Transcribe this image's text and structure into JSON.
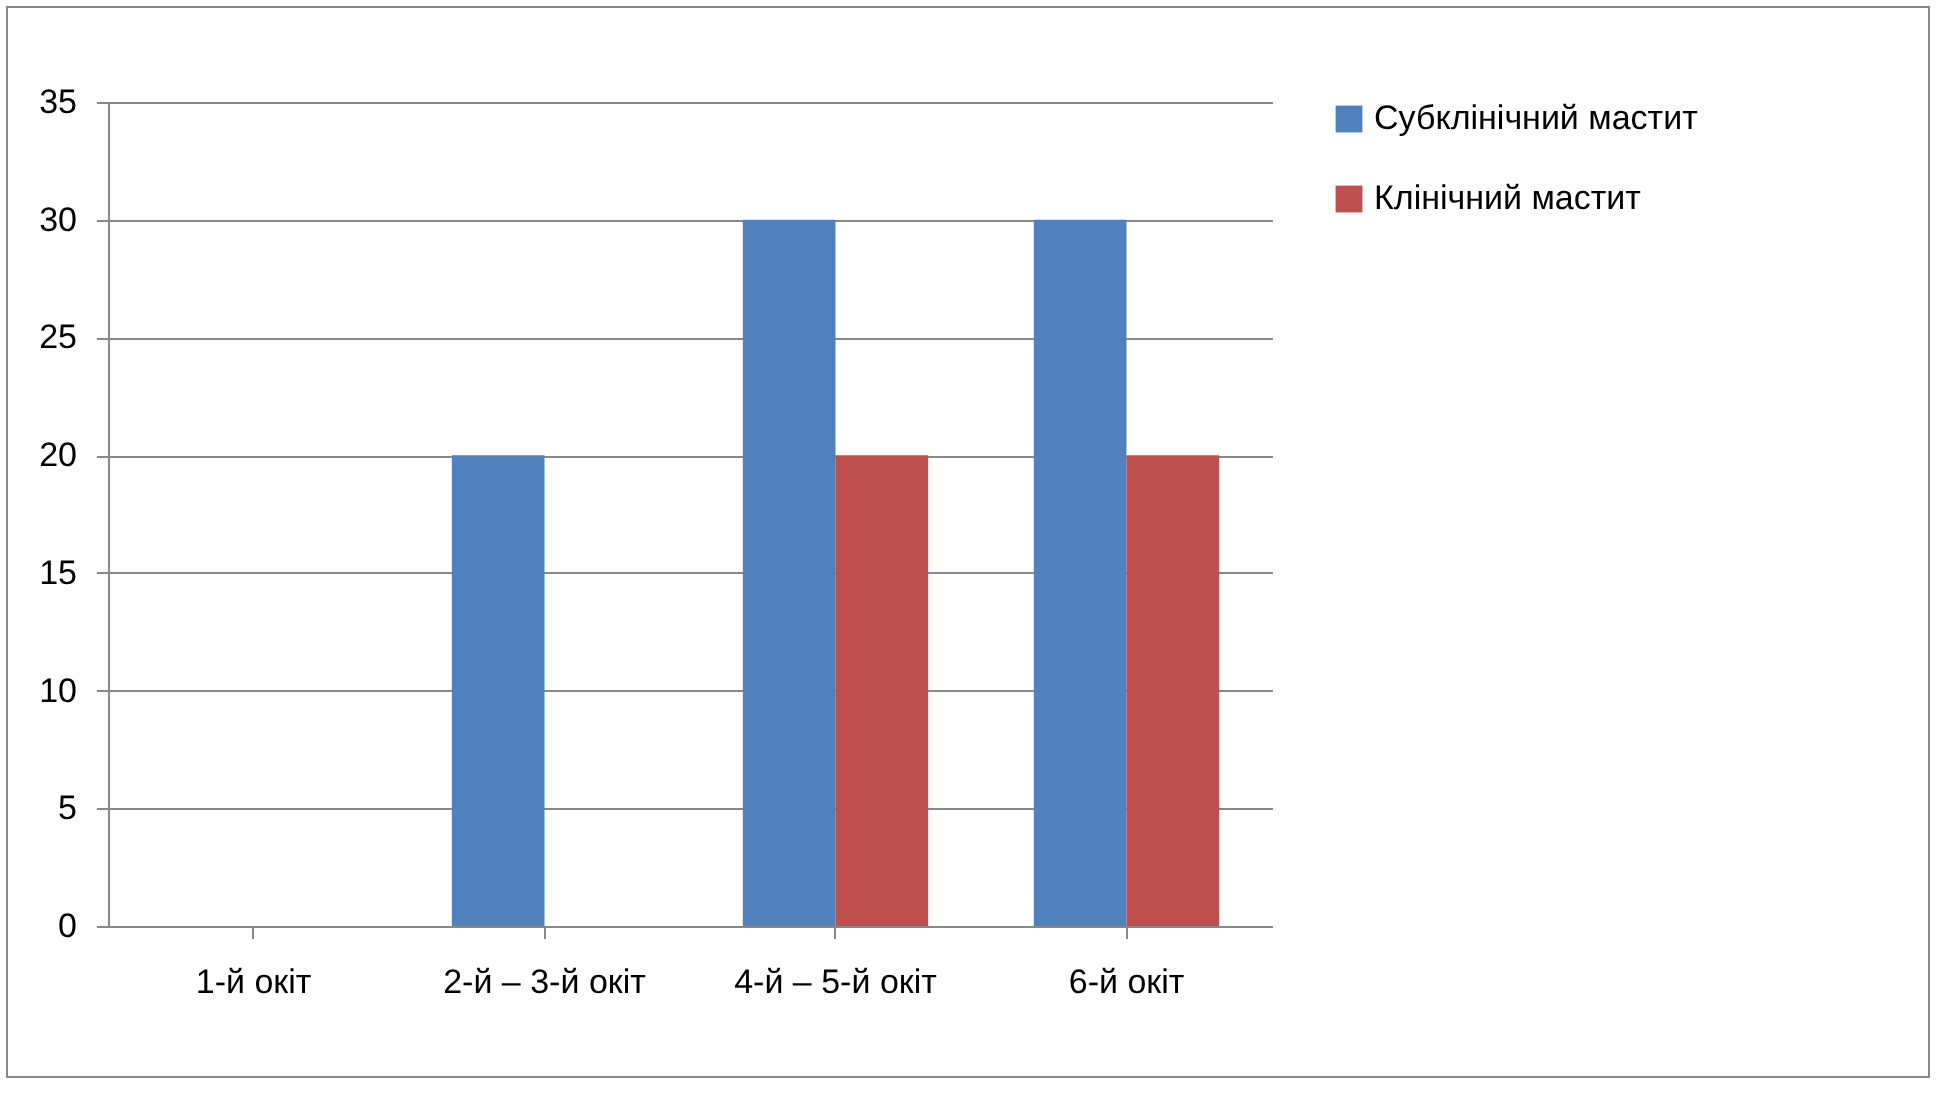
{
  "chart_data": {
    "type": "bar",
    "categories": [
      "1-й окіт",
      "2-й – 3-й окіт",
      "4-й – 5-й окіт",
      "6-й окіт"
    ],
    "series": [
      {
        "name": "Субклінічний мастит",
        "color": "#4f81bd",
        "values": [
          0,
          20,
          30,
          30
        ]
      },
      {
        "name": "Клінічний мастит",
        "color": "#c0504d",
        "values": [
          0,
          0,
          20,
          20
        ]
      }
    ],
    "ylim": [
      0,
      35
    ],
    "yticks": [
      0,
      5,
      10,
      15,
      20,
      25,
      30,
      35
    ],
    "grid": "y",
    "legend": "right"
  }
}
